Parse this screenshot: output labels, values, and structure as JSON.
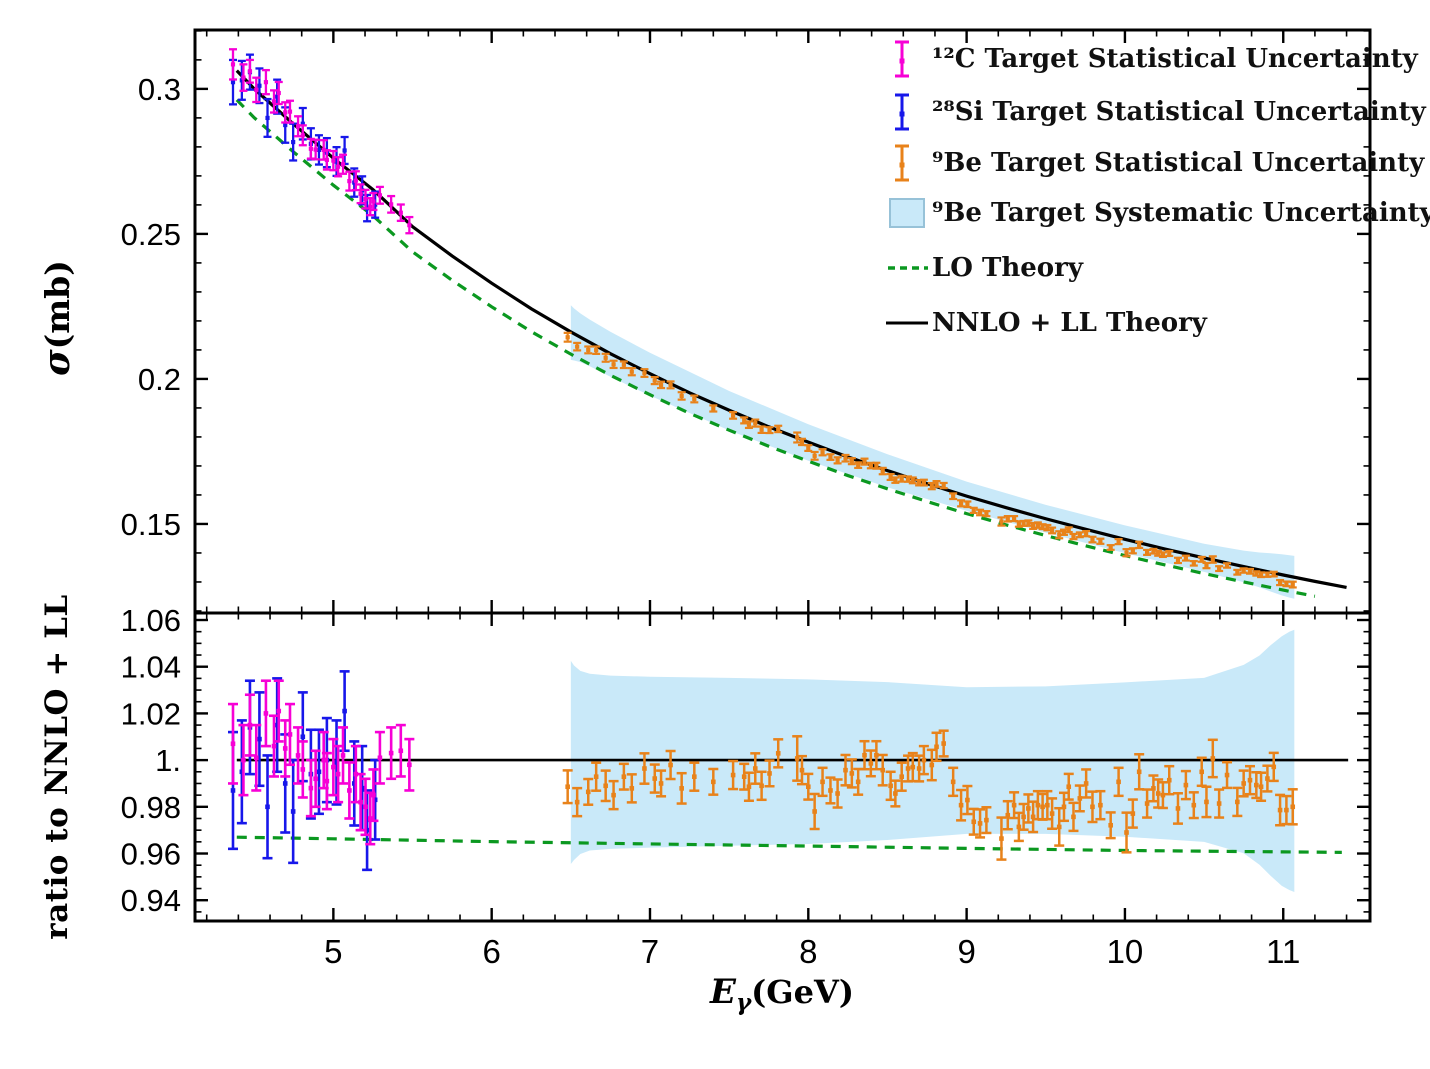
{
  "chart_data": {
    "type": "scatter",
    "title": "",
    "xlabel": {
      "main": "E",
      "sub": "γ",
      "unit": "(GeV)"
    },
    "x_axis": {
      "xlim": [
        4.126,
        11.548
      ],
      "major_ticks": [
        5,
        6,
        7,
        8,
        9,
        10,
        11
      ],
      "major_labels": [
        "5",
        "6",
        "7",
        "8",
        "9",
        "10",
        "11"
      ],
      "minor_step": 0.2
    },
    "panels": {
      "top": {
        "ylabel_symbol": "σ",
        "ylabel_unit": "(mb)",
        "ylim": [
          0.1193,
          0.3203
        ],
        "major_ticks": [
          0.15,
          0.2,
          0.25,
          0.3
        ],
        "major_labels": [
          "0.15",
          "0.2",
          "0.25",
          "0.3"
        ],
        "minor_step": 0.01
      },
      "bottom": {
        "ylabel": "ratio to NNLO + LL",
        "ylim": [
          0.9311,
          1.063
        ],
        "major_ticks": [
          0.94,
          0.96,
          0.98,
          1.0,
          1.02,
          1.04,
          1.06
        ],
        "major_labels": [
          "0.94",
          "0.96",
          "0.98",
          "1.",
          "1.02",
          "1.04",
          "1.06"
        ],
        "minor_step": 0.005
      }
    },
    "colors": {
      "c12": "#F700D6",
      "si28": "#1717EA",
      "be9": "#E8821A",
      "band_fill": "#C9E9F9",
      "band_edge": "#97C2D8",
      "lo": "#0B9820",
      "nnlo": "#000000"
    },
    "legend": [
      {
        "label": "¹²C Target Statistical Uncertainty",
        "marker": "errorbar",
        "color_key": "c12"
      },
      {
        "label": "²⁸Si Target Statistical Uncertainty",
        "marker": "errorbar",
        "color_key": "si28"
      },
      {
        "label": "⁹Be Target Statistical Uncertainty",
        "marker": "errorbar",
        "color_key": "be9"
      },
      {
        "label": "⁹Be Target Systematic Uncertainty",
        "marker": "band",
        "color_key": "band_fill"
      },
      {
        "label": "LO Theory",
        "marker": "dashed",
        "color_key": "lo"
      },
      {
        "label": "NNLO + LL Theory",
        "marker": "line",
        "color_key": "nnlo"
      }
    ],
    "nnlo_curve": [
      [
        4.39,
        0.3063
      ],
      [
        4.5,
        0.3
      ],
      [
        4.75,
        0.2878
      ],
      [
        5.0,
        0.2761
      ],
      [
        5.25,
        0.2653
      ],
      [
        5.5,
        0.2525
      ],
      [
        5.75,
        0.2424
      ],
      [
        6.0,
        0.233
      ],
      [
        6.25,
        0.2242
      ],
      [
        6.5,
        0.2162
      ],
      [
        6.75,
        0.2087
      ],
      [
        7.0,
        0.2018
      ],
      [
        7.25,
        0.1952
      ],
      [
        7.5,
        0.1892
      ],
      [
        7.75,
        0.1835
      ],
      [
        8.0,
        0.1782
      ],
      [
        8.25,
        0.1731
      ],
      [
        8.5,
        0.1684
      ],
      [
        8.75,
        0.1639
      ],
      [
        9.0,
        0.1596
      ],
      [
        9.25,
        0.1556
      ],
      [
        9.5,
        0.1518
      ],
      [
        9.75,
        0.1482
      ],
      [
        10.0,
        0.1447
      ],
      [
        10.25,
        0.1414
      ],
      [
        10.5,
        0.1383
      ],
      [
        10.75,
        0.1353
      ],
      [
        11.0,
        0.1324
      ],
      [
        11.2,
        0.1302
      ],
      [
        11.4,
        0.1281
      ]
    ],
    "lo_ratio": [
      [
        4.39,
        0.967
      ],
      [
        5.0,
        0.9663
      ],
      [
        6.0,
        0.9651
      ],
      [
        7.0,
        0.9641
      ],
      [
        8.0,
        0.9632
      ],
      [
        9.0,
        0.9622
      ],
      [
        10.0,
        0.9613
      ],
      [
        11.0,
        0.9607
      ],
      [
        11.37,
        0.9605
      ]
    ],
    "band_ratio": [
      [
        6.5,
        0.9555,
        1.0425
      ],
      [
        6.52,
        0.9572,
        1.0405
      ],
      [
        6.56,
        0.9598,
        1.0382
      ],
      [
        6.62,
        0.9613,
        1.037
      ],
      [
        6.75,
        0.962,
        1.0362
      ],
      [
        7.0,
        0.9625,
        1.0357
      ],
      [
        7.5,
        0.9633,
        1.0352
      ],
      [
        8.0,
        0.9641,
        1.0346
      ],
      [
        8.5,
        0.9658,
        1.0334
      ],
      [
        9.0,
        0.9684,
        1.0312
      ],
      [
        9.5,
        0.9684,
        1.0316
      ],
      [
        10.0,
        0.9672,
        1.0333
      ],
      [
        10.5,
        0.965,
        1.0352
      ],
      [
        10.75,
        0.9601,
        1.0408
      ],
      [
        10.85,
        0.9552,
        1.0448
      ],
      [
        10.92,
        0.9505,
        1.0492
      ],
      [
        10.99,
        0.9462,
        1.053
      ],
      [
        11.04,
        0.9443,
        1.055
      ],
      [
        11.07,
        0.9435,
        1.0558
      ]
    ],
    "series": {
      "c12": [
        [
          4.366,
          1.007,
          0.017
        ],
        [
          4.432,
          1.0,
          0.015
        ],
        [
          4.473,
          1.015,
          0.013
        ],
        [
          4.513,
          1.001,
          0.014
        ],
        [
          4.574,
          1.02,
          0.014
        ],
        [
          4.625,
          1.006,
          0.013
        ],
        [
          4.655,
          1.021,
          0.013
        ],
        [
          4.696,
          1.005,
          0.012
        ],
        [
          4.726,
          1.011,
          0.013
        ],
        [
          4.777,
          1.002,
          0.012
        ],
        [
          4.807,
          0.996,
          0.012
        ],
        [
          4.858,
          0.988,
          0.012
        ],
        [
          4.888,
          0.992,
          0.012
        ],
        [
          4.939,
          1.0,
          0.012
        ],
        [
          4.959,
          0.991,
          0.012
        ],
        [
          5.0,
          0.997,
          0.012
        ],
        [
          5.03,
          0.994,
          0.012
        ],
        [
          5.061,
          1.002,
          0.012
        ],
        [
          5.101,
          0.987,
          0.012
        ],
        [
          5.142,
          0.994,
          0.012
        ],
        [
          5.172,
          0.982,
          0.012
        ],
        [
          5.203,
          0.98,
          0.012
        ],
        [
          5.233,
          0.975,
          0.011
        ],
        [
          5.253,
          0.985,
          0.011
        ],
        [
          5.294,
          1.001,
          0.011
        ],
        [
          5.365,
          1.003,
          0.011
        ],
        [
          5.426,
          1.004,
          0.011
        ],
        [
          5.48,
          0.998,
          0.011
        ]
      ],
      "si28": [
        [
          4.366,
          0.987,
          0.025
        ],
        [
          4.422,
          0.995,
          0.022
        ],
        [
          4.473,
          1.014,
          0.02
        ],
        [
          4.533,
          1.009,
          0.02
        ],
        [
          4.584,
          0.98,
          0.022
        ],
        [
          4.645,
          1.015,
          0.02
        ],
        [
          4.696,
          0.99,
          0.021
        ],
        [
          4.746,
          0.978,
          0.022
        ],
        [
          4.807,
          1.01,
          0.019
        ],
        [
          4.858,
          0.994,
          0.019
        ],
        [
          4.909,
          0.995,
          0.018
        ],
        [
          4.959,
          1.0,
          0.018
        ],
        [
          5.02,
          0.999,
          0.018
        ],
        [
          5.071,
          1.021,
          0.017
        ],
        [
          5.132,
          0.99,
          0.018
        ],
        [
          5.182,
          0.988,
          0.018
        ],
        [
          5.213,
          0.97,
          0.017
        ],
        [
          5.264,
          0.983,
          0.017
        ]
      ],
      "be9": [
        [
          6.48,
          0.9886,
          0.007
        ],
        [
          6.54,
          0.982,
          0.006
        ],
        [
          6.61,
          0.9864,
          0.0055
        ],
        [
          6.66,
          0.9929,
          0.006
        ],
        [
          6.72,
          0.989,
          0.0065
        ],
        [
          6.77,
          0.985,
          0.006
        ],
        [
          6.835,
          0.9929,
          0.0055
        ],
        [
          6.885,
          0.9879,
          0.006
        ],
        [
          6.965,
          0.9964,
          0.0065
        ],
        [
          7.03,
          0.9921,
          0.006
        ],
        [
          7.07,
          0.99,
          0.0055
        ],
        [
          7.13,
          0.9979,
          0.006
        ],
        [
          7.2,
          0.9879,
          0.0065
        ],
        [
          7.28,
          0.9929,
          0.006
        ],
        [
          7.4,
          0.9907,
          0.0055
        ],
        [
          7.525,
          0.9936,
          0.006
        ],
        [
          7.595,
          0.9929,
          0.0055
        ],
        [
          7.625,
          0.9886,
          0.006
        ],
        [
          7.665,
          0.9964,
          0.0065
        ],
        [
          7.705,
          0.989,
          0.006
        ],
        [
          7.755,
          0.9943,
          0.0055
        ],
        [
          7.81,
          1.0029,
          0.006
        ],
        [
          7.93,
          1.0007,
          0.0095
        ],
        [
          7.96,
          0.9957,
          0.006
        ],
        [
          8.0,
          0.9886,
          0.0055
        ],
        [
          8.04,
          0.978,
          0.0075
        ],
        [
          8.09,
          0.9907,
          0.006
        ],
        [
          8.14,
          0.987,
          0.0055
        ],
        [
          8.185,
          0.9857,
          0.006
        ],
        [
          8.235,
          0.9957,
          0.0065
        ],
        [
          8.275,
          0.9943,
          0.006
        ],
        [
          8.315,
          0.9907,
          0.0055
        ],
        [
          8.355,
          1.0021,
          0.006
        ],
        [
          8.395,
          0.9986,
          0.0055
        ],
        [
          8.43,
          1.0021,
          0.006
        ],
        [
          8.47,
          0.9957,
          0.0065
        ],
        [
          8.52,
          0.989,
          0.006
        ],
        [
          8.55,
          0.9857,
          0.0055
        ],
        [
          8.59,
          0.9929,
          0.006
        ],
        [
          8.63,
          0.9964,
          0.0055
        ],
        [
          8.66,
          0.997,
          0.006
        ],
        [
          8.7,
          0.9964,
          0.0055
        ],
        [
          8.73,
          1.0,
          0.006
        ],
        [
          8.78,
          0.9979,
          0.0065
        ],
        [
          8.81,
          1.0057,
          0.006
        ],
        [
          8.855,
          1.0071,
          0.0055
        ],
        [
          8.915,
          0.9907,
          0.006
        ],
        [
          8.965,
          0.9807,
          0.0065
        ],
        [
          9.005,
          0.9829,
          0.006
        ],
        [
          9.045,
          0.9736,
          0.0055
        ],
        [
          9.085,
          0.9729,
          0.006
        ],
        [
          9.125,
          0.9743,
          0.0055
        ],
        [
          9.22,
          0.9664,
          0.009
        ],
        [
          9.26,
          0.9764,
          0.006
        ],
        [
          9.3,
          0.9807,
          0.0055
        ],
        [
          9.33,
          0.9714,
          0.006
        ],
        [
          9.36,
          0.9757,
          0.0055
        ],
        [
          9.39,
          0.9793,
          0.006
        ],
        [
          9.42,
          0.9757,
          0.0065
        ],
        [
          9.45,
          0.9807,
          0.006
        ],
        [
          9.48,
          0.98,
          0.0055
        ],
        [
          9.51,
          0.9807,
          0.006
        ],
        [
          9.54,
          0.9771,
          0.0065
        ],
        [
          9.585,
          0.9714,
          0.008
        ],
        [
          9.615,
          0.98,
          0.006
        ],
        [
          9.645,
          0.9886,
          0.0055
        ],
        [
          9.675,
          0.9757,
          0.006
        ],
        [
          9.715,
          0.9836,
          0.0055
        ],
        [
          9.755,
          0.99,
          0.006
        ],
        [
          9.795,
          0.98,
          0.0065
        ],
        [
          9.845,
          0.9807,
          0.006
        ],
        [
          9.91,
          0.9721,
          0.0055
        ],
        [
          9.96,
          0.9907,
          0.006
        ],
        [
          10.01,
          0.969,
          0.0085
        ],
        [
          10.05,
          0.9771,
          0.006
        ],
        [
          10.09,
          0.995,
          0.0075
        ],
        [
          10.14,
          0.9814,
          0.006
        ],
        [
          10.18,
          0.9879,
          0.0055
        ],
        [
          10.21,
          0.9857,
          0.006
        ],
        [
          10.24,
          0.985,
          0.0055
        ],
        [
          10.28,
          0.9914,
          0.006
        ],
        [
          10.335,
          0.9793,
          0.0065
        ],
        [
          10.385,
          0.9893,
          0.006
        ],
        [
          10.435,
          0.9807,
          0.0055
        ],
        [
          10.485,
          0.995,
          0.006
        ],
        [
          10.515,
          0.9821,
          0.0065
        ],
        [
          10.555,
          1.0007,
          0.008
        ],
        [
          10.595,
          0.9814,
          0.006
        ],
        [
          10.645,
          0.9936,
          0.0055
        ],
        [
          10.71,
          0.9821,
          0.006
        ],
        [
          10.75,
          0.99,
          0.0055
        ],
        [
          10.79,
          0.9914,
          0.006
        ],
        [
          10.83,
          0.9893,
          0.0055
        ],
        [
          10.86,
          0.9886,
          0.006
        ],
        [
          10.9,
          0.9921,
          0.0055
        ],
        [
          10.94,
          0.9971,
          0.006
        ],
        [
          10.98,
          0.9786,
          0.0065
        ],
        [
          11.02,
          0.9786,
          0.006
        ],
        [
          11.06,
          0.98,
          0.0075
        ]
      ]
    },
    "curve_domain": [
      4.39,
      11.4
    ],
    "ratio_line_value": 1.0
  }
}
